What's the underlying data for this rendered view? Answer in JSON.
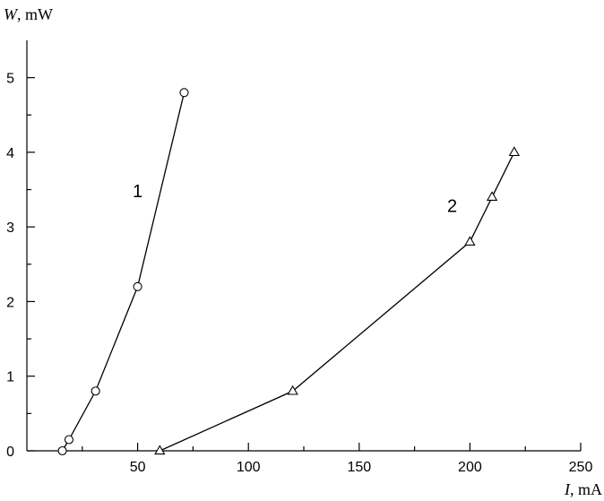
{
  "chart_data": {
    "type": "line",
    "xlabel": {
      "var": "I",
      "unit": ", mA"
    },
    "ylabel": {
      "var": "W",
      "unit": ", mW"
    },
    "xlim": [
      0,
      250
    ],
    "ylim": [
      0,
      5.5
    ],
    "x_ticks": [
      "50",
      "100",
      "150",
      "200",
      "250"
    ],
    "y_ticks": [
      "0",
      "1",
      "2",
      "3",
      "4",
      "5"
    ],
    "grid": false,
    "series": [
      {
        "label": "1",
        "marker": "circle",
        "x": [
          16,
          19,
          31,
          50,
          71
        ],
        "y": [
          0,
          0.15,
          0.8,
          2.2,
          4.8
        ],
        "label_at": [
          50,
          3.4
        ]
      },
      {
        "label": "2",
        "marker": "triangle",
        "x": [
          60,
          120,
          200,
          210,
          220
        ],
        "y": [
          0,
          0.8,
          2.8,
          3.4,
          4.0
        ],
        "label_at": [
          192,
          3.2
        ]
      }
    ]
  }
}
